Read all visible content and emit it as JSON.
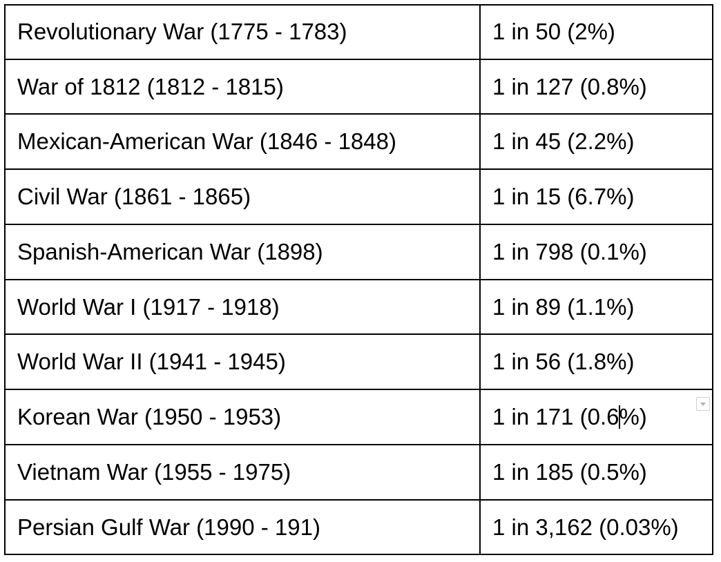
{
  "table": {
    "rows": [
      {
        "war": "Revolutionary War (1775 - 1783)",
        "odds": "1 in 50 (2%)"
      },
      {
        "war": "War of 1812 (1812 - 1815)",
        "odds": "1 in 127 (0.8%)"
      },
      {
        "war": "Mexican-American War (1846 - 1848)",
        "odds": "1 in 45 (2.2%)"
      },
      {
        "war": "Civil War (1861 - 1865)",
        "odds": "1 in 15 (6.7%)"
      },
      {
        "war": "Spanish-American War (1898)",
        "odds": "1 in 798 (0.1%)"
      },
      {
        "war": "World War I (1917 - 1918)",
        "odds": "1 in 89 (1.1%)"
      },
      {
        "war": "World War II (1941 - 1945)",
        "odds": "1 in 56 (1.8%)"
      },
      {
        "war": "Korean War (1950 - 1953)",
        "odds": "1 in 171 (0.6%)",
        "odds_before_cursor": "1 in 171 (0.6",
        "odds_after_cursor": "%)"
      },
      {
        "war": "Vietnam War (1955 - 1975)",
        "odds": "1 in 185 (0.5%)"
      },
      {
        "war": "Persian Gulf War (1990 - 191)",
        "odds": "1 in 3,162 (0.03%)"
      }
    ]
  },
  "icons": {
    "cell_dropdown": "chevron-down-icon"
  },
  "colors": {
    "border": "#000000",
    "text": "#000000",
    "background": "#ffffff"
  }
}
